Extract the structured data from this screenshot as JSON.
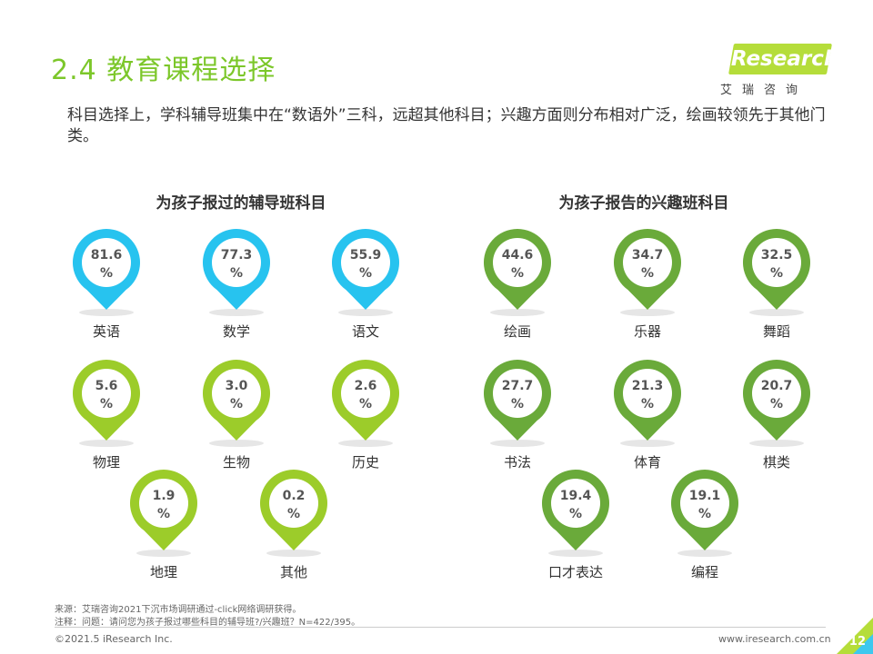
{
  "page": {
    "title": "2.4 教育课程选择",
    "intro": "科目选择上，学科辅导班集中在“数语外”三科，远超其他科目；兴趣方面则分布相对广泛，绘画较领先于其他门类。",
    "logo_text": "iResearch",
    "logo_sub": "艾瑞咨询",
    "source_note": "来源：艾瑞咨询2021下沉市场调研通过-click网络调研获得。",
    "question_note": "注释：问题：请问您为孩子报过哪些科目的辅导班?/兴趣班？N=422/395。",
    "copyright": "©2021.5 iResearch Inc.",
    "website": "www.iresearch.com.cn",
    "page_number": "12"
  },
  "colors": {
    "title_green": "#7cc72a",
    "pin_blue": "#27c3ef",
    "pin_lightgreen": "#9ccc2a",
    "pin_green": "#6aaa3a",
    "accent_lime": "#b5dd3a"
  },
  "chart_data": [
    {
      "type": "pictorial-pin",
      "title": "为孩子报过的辅导班科目",
      "unit": "%",
      "categories": [
        "英语",
        "数学",
        "语文",
        "物理",
        "生物",
        "历史",
        "地理",
        "其他"
      ],
      "values": [
        81.6,
        77.3,
        55.9,
        5.6,
        3.0,
        2.6,
        1.9,
        0.2
      ],
      "labels": [
        "81.6",
        "77.3",
        "55.9",
        "5.6",
        "3.0",
        "2.6",
        "1.9",
        "0.2"
      ],
      "pin_colors": [
        "#27c3ef",
        "#27c3ef",
        "#27c3ef",
        "#9ccc2a",
        "#9ccc2a",
        "#9ccc2a",
        "#9ccc2a",
        "#9ccc2a"
      ]
    },
    {
      "type": "pictorial-pin",
      "title": "为孩子报告的兴趣班科目",
      "unit": "%",
      "categories": [
        "绘画",
        "乐器",
        "舞蹈",
        "书法",
        "体育",
        "棋类",
        "口才表达",
        "编程"
      ],
      "values": [
        44.6,
        34.7,
        32.5,
        27.7,
        21.3,
        20.7,
        19.4,
        19.1
      ],
      "labels": [
        "44.6",
        "34.7",
        "32.5",
        "27.7",
        "21.3",
        "20.7",
        "19.4",
        "19.1"
      ],
      "pin_colors": [
        "#6aaa3a",
        "#6aaa3a",
        "#6aaa3a",
        "#6aaa3a",
        "#6aaa3a",
        "#6aaa3a",
        "#6aaa3a",
        "#6aaa3a"
      ]
    }
  ]
}
